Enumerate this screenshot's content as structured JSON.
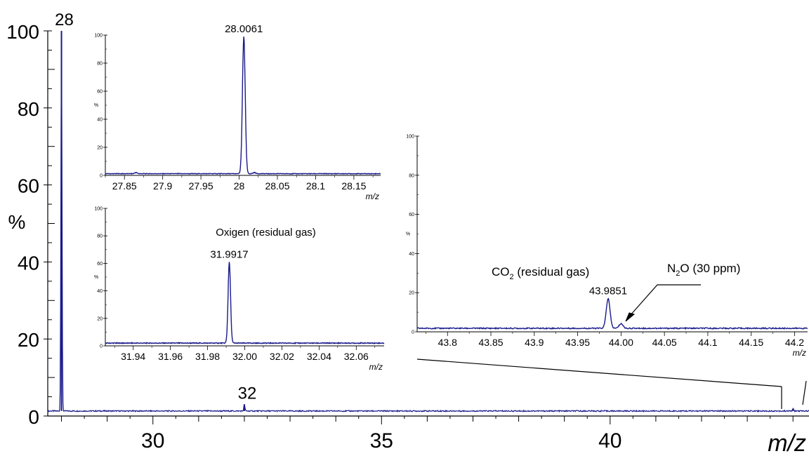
{
  "chart_data": [
    {
      "id": "main",
      "type": "line",
      "title": "",
      "xlabel": "m/z",
      "ylabel": "%",
      "xlim": [
        27.7,
        44.35
      ],
      "ylim": [
        0,
        100
      ],
      "x_ticks": [
        "30",
        "35",
        "40"
      ],
      "y_ticks": [
        "0",
        "20",
        "40",
        "60",
        "80",
        "100"
      ],
      "baseline": 1.3,
      "peaks": [
        {
          "x": 28.0,
          "y": 100,
          "label": "28"
        },
        {
          "x": 32.0,
          "y": 3.0,
          "label": "32"
        },
        {
          "x": 44.0,
          "y": 1.9,
          "label": ""
        }
      ],
      "series_color": "#1a1a8c"
    },
    {
      "id": "inset-n2",
      "type": "line",
      "title": "",
      "xlabel": "m/z",
      "ylabel": "%",
      "xlim": [
        27.825,
        28.185
      ],
      "ylim": [
        0,
        100
      ],
      "x_ticks": [
        "27.85",
        "27.9",
        "27.95",
        "28",
        "28.05",
        "28.1",
        "28.15"
      ],
      "y_ticks": [
        "0",
        "20",
        "40",
        "60",
        "80",
        "100"
      ],
      "baseline": 1.2,
      "peaks": [
        {
          "x": 28.0061,
          "y": 99,
          "label": "28.0061"
        },
        {
          "x": 27.865,
          "y": 2.0,
          "label": ""
        },
        {
          "x": 28.02,
          "y": 2.0,
          "label": ""
        }
      ],
      "annotation": ""
    },
    {
      "id": "inset-o2",
      "type": "line",
      "title": "",
      "xlabel": "m/z",
      "ylabel": "%",
      "xlim": [
        31.925,
        32.075
      ],
      "ylim": [
        0,
        100
      ],
      "x_ticks": [
        "31.94",
        "31.96",
        "31.98",
        "32.00",
        "32.02",
        "32.04",
        "32.06"
      ],
      "y_ticks": [
        "0",
        "20",
        "40",
        "60",
        "80",
        "100"
      ],
      "baseline": 2.0,
      "peaks": [
        {
          "x": 31.9917,
          "y": 61,
          "label": "31.9917"
        }
      ],
      "annotation": "Oxigen (residual gas)"
    },
    {
      "id": "inset-co2",
      "type": "line",
      "title": "",
      "xlabel": "m/z",
      "ylabel": "%",
      "xlim": [
        43.765,
        44.215
      ],
      "ylim": [
        0,
        100
      ],
      "x_ticks": [
        "43.8",
        "43.85",
        "43.9",
        "43.95",
        "44.00",
        "44.05",
        "44.1",
        "44.15",
        "44.2"
      ],
      "y_ticks": [
        "0",
        "20",
        "40",
        "60",
        "80",
        "100"
      ],
      "baseline": 1.8,
      "peaks": [
        {
          "x": 43.9851,
          "y": 17,
          "label": "43.9851"
        },
        {
          "x": 44.0,
          "y": 4.2,
          "label": ""
        }
      ],
      "annotation_co2_main": "CO",
      "annotation_co2_sub": "2",
      "annotation_co2_rest": " (residual gas)",
      "annotation_n2o_main": "N",
      "annotation_n2o_sub": "2",
      "annotation_n2o_rest": "O (30 ppm)"
    }
  ]
}
